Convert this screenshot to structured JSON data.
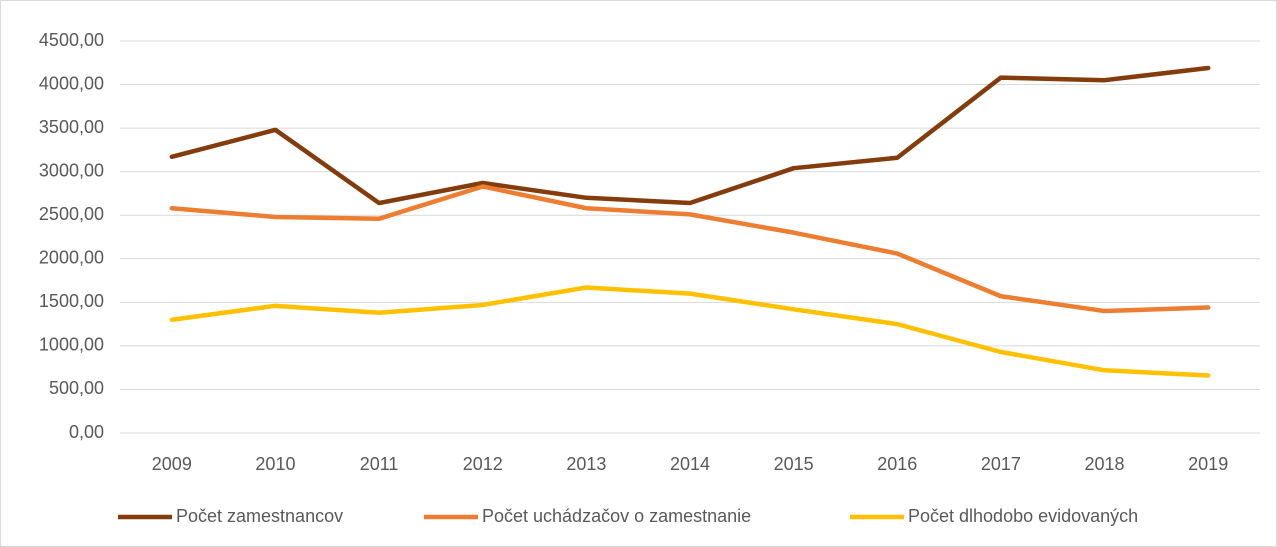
{
  "chart_data": {
    "type": "line",
    "categories": [
      "2009",
      "2010",
      "2011",
      "2012",
      "2013",
      "2014",
      "2015",
      "2016",
      "2017",
      "2018",
      "2019"
    ],
    "series": [
      {
        "name": "Počet zamestnancov",
        "color": "#843c0c",
        "values": [
          3170,
          3480,
          2640,
          2870,
          2700,
          2640,
          3040,
          3160,
          4080,
          4050,
          4190
        ]
      },
      {
        "name": "Počet uchádzačov o zamestnanie",
        "color": "#ed7d31",
        "values": [
          2580,
          2480,
          2460,
          2830,
          2580,
          2510,
          2300,
          2060,
          1570,
          1400,
          1440
        ]
      },
      {
        "name": "Počet dlhodobo evidovaných",
        "color": "#ffc000",
        "values": [
          1300,
          1460,
          1380,
          1470,
          1670,
          1600,
          1420,
          1250,
          930,
          720,
          660
        ]
      }
    ],
    "ylim": [
      0,
      4500
    ],
    "yticks": [
      {
        "value": 0,
        "label": "0,00"
      },
      {
        "value": 500,
        "label": "500,00"
      },
      {
        "value": 1000,
        "label": "1000,00"
      },
      {
        "value": 1500,
        "label": "1500,00"
      },
      {
        "value": 2000,
        "label": "2000,00"
      },
      {
        "value": 2500,
        "label": "2500,00"
      },
      {
        "value": 3000,
        "label": "3000,00"
      },
      {
        "value": 3500,
        "label": "3500,00"
      },
      {
        "value": 4000,
        "label": "4000,00"
      },
      {
        "value": 4500,
        "label": "4500,00"
      }
    ],
    "grid": true,
    "legend": "bottom"
  }
}
